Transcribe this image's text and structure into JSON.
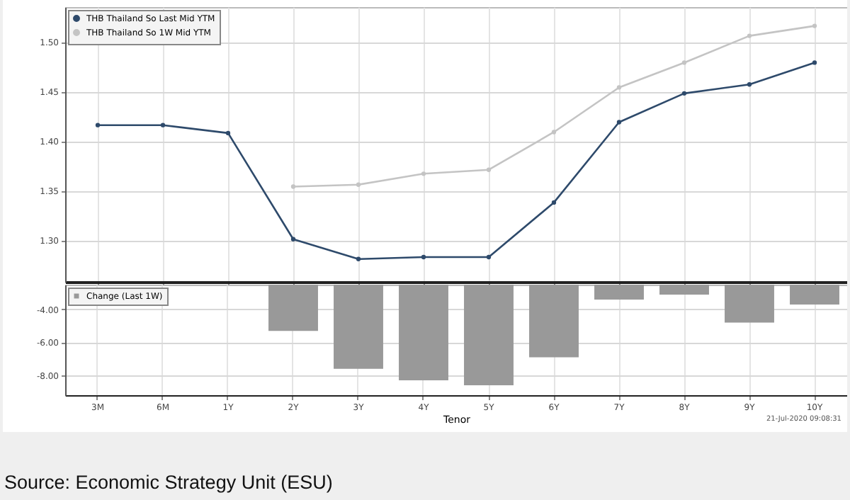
{
  "chart_data": [
    {
      "type": "line",
      "categories": [
        null,
        null,
        null,
        null,
        null,
        null,
        null,
        null,
        null,
        null,
        null,
        null
      ],
      "series": [
        {
          "name": "THB Thailand So Last Mid YTM",
          "color": "#2e4a6b",
          "values": [
            1.416,
            1.416,
            1.408,
            1.301,
            1.281,
            1.283,
            1.283,
            1.338,
            1.419,
            1.448,
            1.457,
            1.479
          ]
        },
        {
          "name": "THB Thailand So 1W Mid YTM",
          "color": "#c4c4c4",
          "values": [
            null,
            null,
            null,
            1.354,
            1.356,
            1.367,
            1.371,
            1.409,
            1.454,
            1.479,
            1.506,
            1.516
          ]
        }
      ],
      "ylim": [
        1.258,
        1.535
      ],
      "yticks": [
        {
          "value": 1.3,
          "label": "1.30"
        },
        {
          "value": 1.35,
          "label": "1.35"
        },
        {
          "value": 1.4,
          "label": "1.40"
        },
        {
          "value": 1.45,
          "label": "1.45"
        },
        {
          "value": 1.5,
          "label": "1.50"
        }
      ],
      "grid": true,
      "legend": "top left",
      "marker": "circle",
      "line_style": "solid",
      "tick_labels": "y"
    },
    {
      "type": "bar",
      "categories": [
        "3M",
        "6M",
        "1Y",
        "2Y",
        "3Y",
        "4Y",
        "5Y",
        "6Y",
        "7Y",
        "8Y",
        "9Y",
        "10Y"
      ],
      "series": [
        {
          "name": "Change (Last 1W)",
          "color": "#999999",
          "values": [
            null,
            null,
            null,
            -5.3,
            -7.6,
            -8.3,
            -8.6,
            -6.9,
            -3.4,
            -3.1,
            -4.8,
            -3.7
          ]
        }
      ],
      "ylim": [
        -9.2,
        -2.5
      ],
      "yticks": [
        {
          "value": -8,
          "label": "-8.00"
        },
        {
          "value": -6,
          "label": "-6.00"
        },
        {
          "value": -4,
          "label": "-4.00"
        }
      ],
      "xlabel": "Tenor",
      "grid": true,
      "legend": "top left",
      "annotations": [
        "21-Jul-2020 09:08:31",
        "Source: Economic Strategy Unit (ESU)"
      ]
    }
  ]
}
